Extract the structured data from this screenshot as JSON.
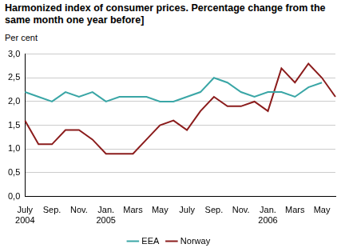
{
  "chart_data": {
    "type": "line",
    "title": "Harmonized index of consumer prices. Percentage change from the same month one year before]",
    "y_label": "Per cent",
    "categories": [
      "July\n2004",
      null,
      "Sep.",
      null,
      "Nov.",
      null,
      "Jan.\n2005",
      null,
      "Mars",
      null,
      "May",
      null,
      "July",
      null,
      "Sep.",
      null,
      "Nov.",
      null,
      "Jan.\n2006",
      null,
      "Mars",
      null,
      "May",
      null
    ],
    "series": [
      {
        "name": "EEA",
        "color": "#3aa6a6",
        "values": [
          2.2,
          2.1,
          2.0,
          2.2,
          2.1,
          2.2,
          2.0,
          2.1,
          2.1,
          2.1,
          2.0,
          2.0,
          2.1,
          2.2,
          2.5,
          2.4,
          2.2,
          2.1,
          2.2,
          2.2,
          2.1,
          2.3,
          2.4,
          null
        ]
      },
      {
        "name": "Norway",
        "color": "#8b1c1c",
        "values": [
          1.6,
          1.1,
          1.1,
          1.4,
          1.4,
          1.2,
          0.9,
          0.9,
          0.9,
          1.2,
          1.5,
          1.6,
          1.4,
          1.8,
          2.1,
          1.9,
          1.9,
          2.0,
          1.8,
          2.7,
          2.4,
          2.8,
          2.5,
          2.1
        ]
      }
    ],
    "ylim": [
      0,
      3
    ],
    "yticks": [
      {
        "value": 0,
        "label": "0,0"
      },
      {
        "value": 0.5,
        "label": "0,5"
      },
      {
        "value": 1,
        "label": "1,0"
      },
      {
        "value": 1.5,
        "label": "1,5"
      },
      {
        "value": 2,
        "label": "2,0"
      },
      {
        "value": 2.5,
        "label": "2,5"
      },
      {
        "value": 3,
        "label": "3,0"
      }
    ],
    "grid": true,
    "legend": "bottom"
  }
}
